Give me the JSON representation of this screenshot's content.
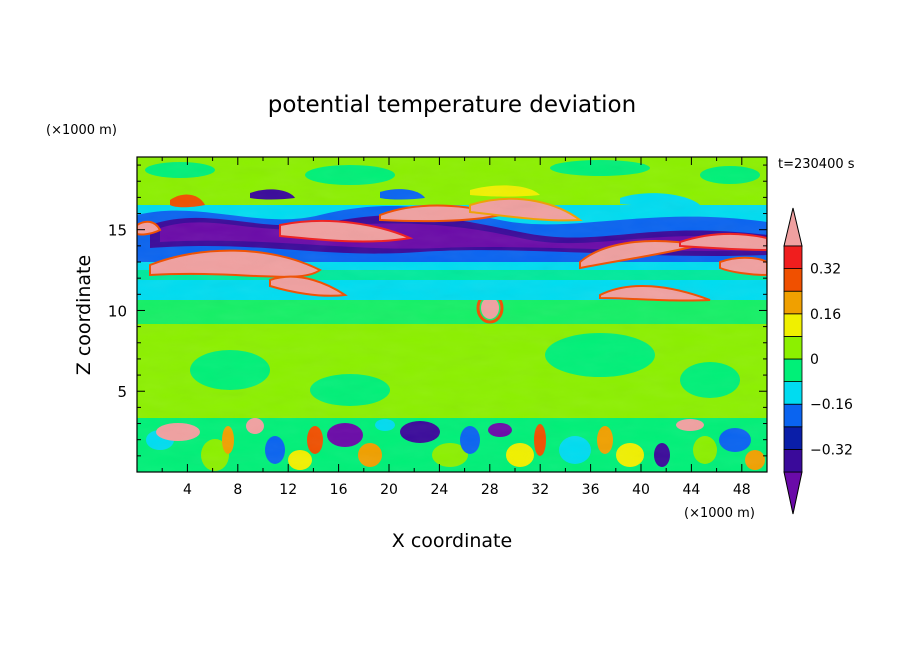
{
  "chart_data": {
    "type": "heatmap",
    "title": "potential temperature deviation",
    "xlabel": "X coordinate",
    "ylabel": "Z coordinate",
    "x_unit": "(×1000 m)",
    "y_unit": "(×1000 m)",
    "time_label": "t=230400 s",
    "xlim": [
      0,
      50
    ],
    "ylim": [
      0,
      19.5
    ],
    "x_ticks": [
      4,
      8,
      12,
      16,
      20,
      24,
      28,
      32,
      36,
      40,
      44,
      48
    ],
    "y_ticks": [
      5,
      10,
      15
    ],
    "colorbar": {
      "levels": [
        -0.4,
        -0.32,
        -0.24,
        -0.16,
        -0.08,
        0,
        0.08,
        0.16,
        0.24,
        0.32,
        0.4
      ],
      "labeled_levels": [
        0.32,
        0.16,
        0,
        -0.16,
        -0.32
      ],
      "colors": [
        "#6a0aa8",
        "#3a0a9a",
        "#0a1ea8",
        "#0a64f0",
        "#00dcf0",
        "#00f078",
        "#8cf000",
        "#f0f000",
        "#f0a000",
        "#f05000",
        "#f01e1e",
        "#f0a0a0"
      ],
      "extend": "both"
    }
  }
}
